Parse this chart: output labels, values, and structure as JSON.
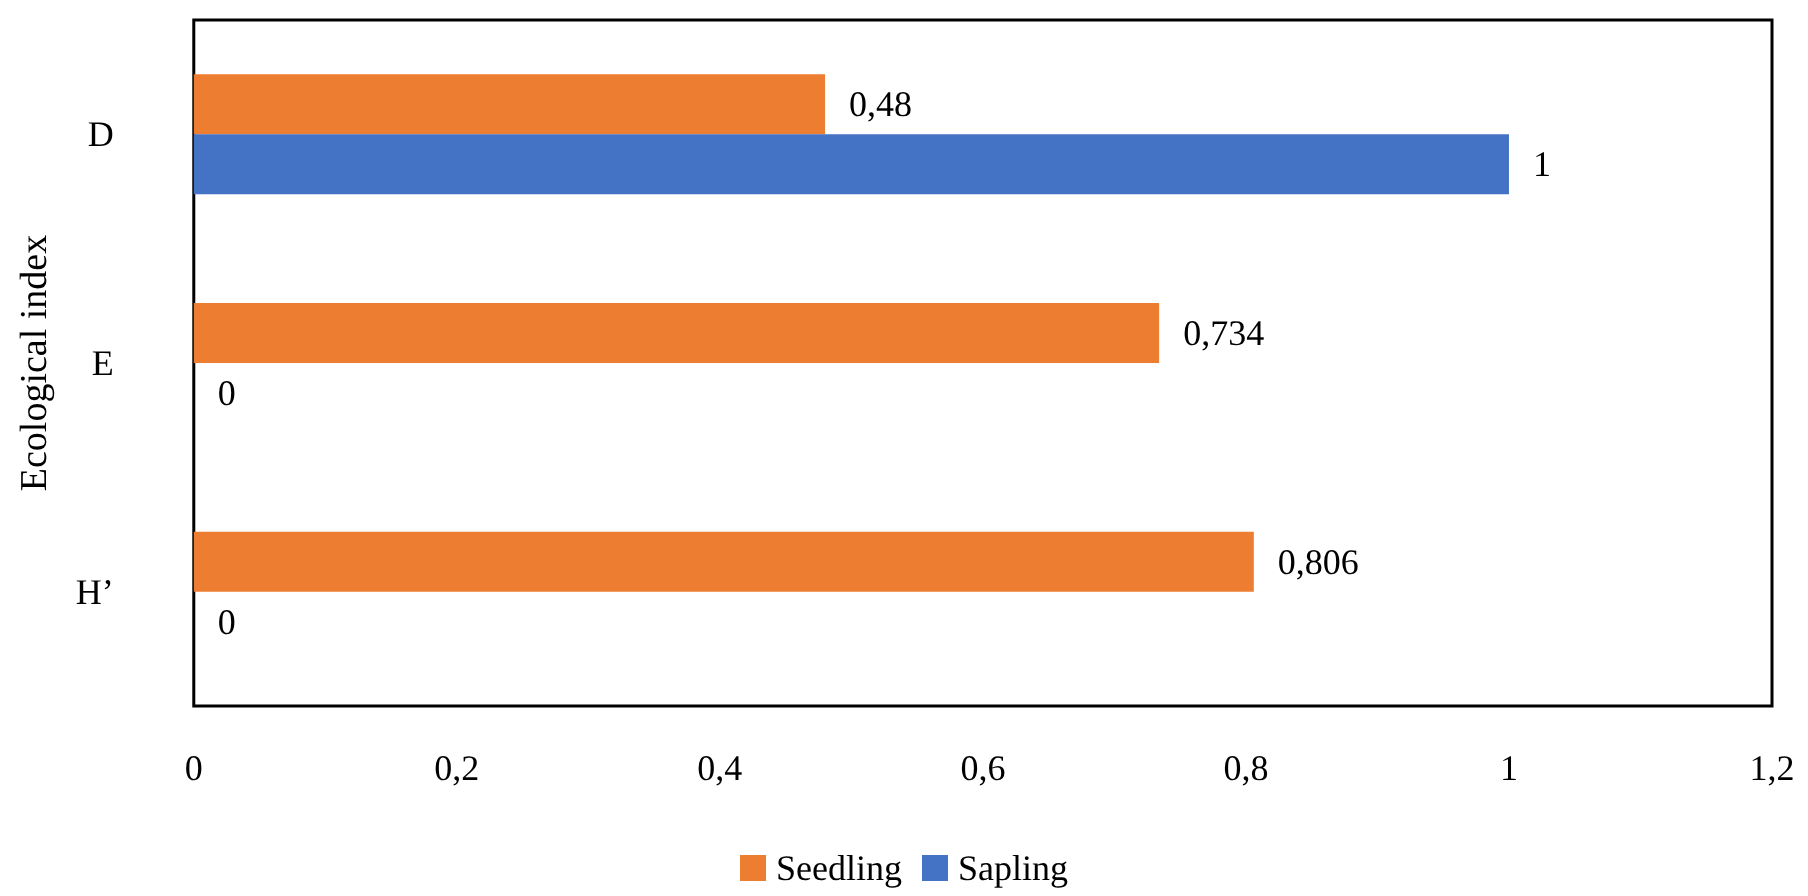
{
  "chart_data": {
    "type": "bar",
    "orientation": "horizontal",
    "ylabel": "Ecological index",
    "categories": [
      "D",
      "E",
      "H’"
    ],
    "series": [
      {
        "name": "Seedling",
        "color": "#ed7d31",
        "values": [
          0.48,
          0.734,
          0.806
        ],
        "value_labels": [
          "0,48",
          "0,734",
          "0,806"
        ]
      },
      {
        "name": "Sapling",
        "color": "#4472c4",
        "values": [
          1,
          0,
          0
        ],
        "value_labels": [
          "1",
          "0",
          "0"
        ]
      }
    ],
    "xlim": [
      0,
      1.2
    ],
    "xticks": [
      0,
      {
        "value": 0.2,
        "label": "0,2"
      },
      {
        "value": 0.4,
        "label": "0,4"
      },
      {
        "value": 0.6,
        "label": "0,6"
      },
      {
        "value": 0.8,
        "label": "0,8"
      },
      1,
      {
        "value": 1.2,
        "label": "1,2"
      }
    ],
    "grid": false,
    "legend": "bottom"
  }
}
